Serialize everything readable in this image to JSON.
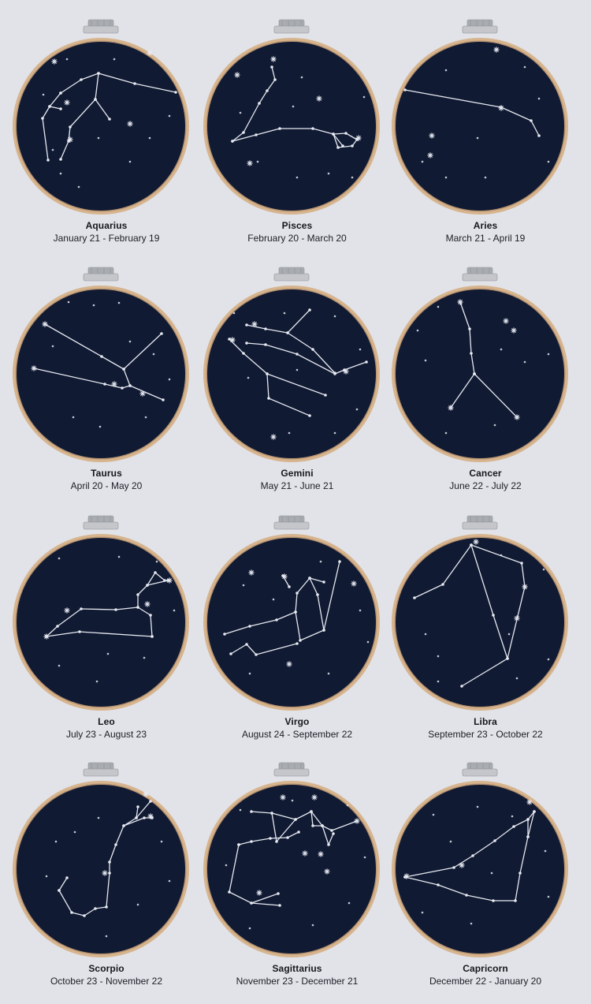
{
  "colors": {
    "background": "#e2e3e8",
    "fabric": "#101a33",
    "hoop_wood": "#d6b48e",
    "thread": "#e6e9f0",
    "clamp": "#a9acb1"
  },
  "signs": [
    {
      "id": "aquarius",
      "name": "Aquarius",
      "dates": "January 21 - February 19"
    },
    {
      "id": "pisces",
      "name": "Pisces",
      "dates": "February 20 - March 20"
    },
    {
      "id": "aries",
      "name": "Aries",
      "dates": "March 21 - April 19"
    },
    {
      "id": "taurus",
      "name": "Taurus",
      "dates": "April 20 - May 20"
    },
    {
      "id": "gemini",
      "name": "Gemini",
      "dates": "May 21 - June 21"
    },
    {
      "id": "cancer",
      "name": "Cancer",
      "dates": "June 22 - July 22"
    },
    {
      "id": "leo",
      "name": "Leo",
      "dates": "July 23 - August 23"
    },
    {
      "id": "virgo",
      "name": "Virgo",
      "dates": "August 24 - September 22"
    },
    {
      "id": "libra",
      "name": "Libra",
      "dates": "September 23 - October 22"
    },
    {
      "id": "scorpio",
      "name": "Scorpio",
      "dates": "October 23 - November 22"
    },
    {
      "id": "sagittarius",
      "name": "Sagittarius",
      "dates": "November 23 - December 21"
    },
    {
      "id": "capricorn",
      "name": "Capricorn",
      "dates": "December 22 - January 20"
    }
  ]
}
